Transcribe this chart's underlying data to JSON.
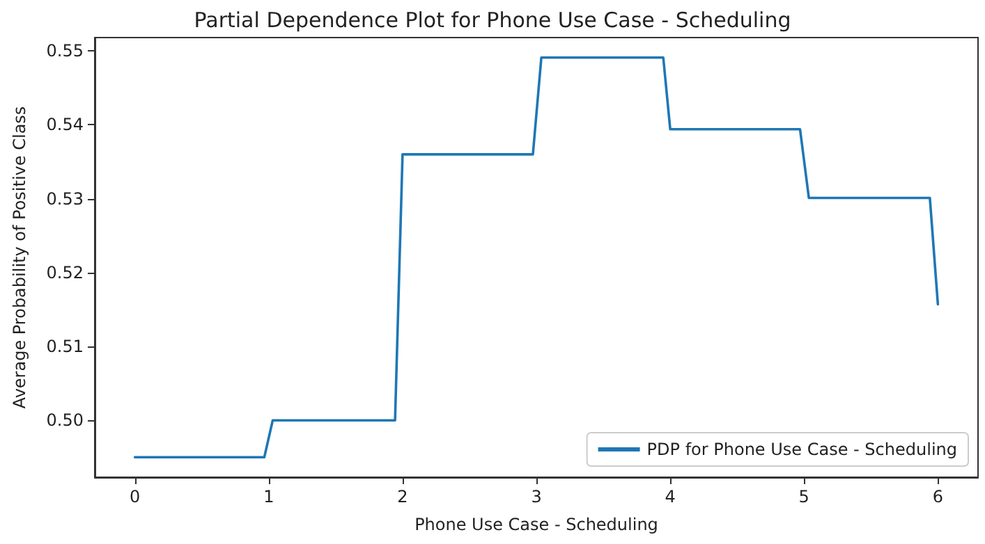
{
  "chart_data": {
    "type": "line",
    "title": "Partial Dependence Plot for Phone Use Case - Scheduling",
    "xlabel": "Phone Use Case - Scheduling",
    "ylabel": "Average Probability of Positive Class",
    "series": [
      {
        "name": "PDP for Phone Use Case - Scheduling",
        "color": "#1f77b4",
        "x": [
          0,
          0.967,
          1.03,
          1.944,
          2.0,
          2.974,
          3.037,
          3.948,
          4.0,
          4.97,
          5.036,
          5.94,
          6.0
        ],
        "values": [
          0.495,
          0.495,
          0.5,
          0.5,
          0.536,
          0.536,
          0.5491,
          0.5491,
          0.5394,
          0.5394,
          0.5301,
          0.5301,
          0.5157
        ]
      }
    ],
    "xlim": [
      -0.3,
      6.3
    ],
    "xticks": [
      0,
      1,
      2,
      3,
      4,
      5,
      6
    ],
    "ylim": [
      0.4923,
      0.5518
    ],
    "yticks": [
      {
        "value": 0.5,
        "label": "0.50"
      },
      0.51,
      0.52,
      0.53,
      0.54,
      0.55
    ],
    "grid": false,
    "legend": "bottom right",
    "marker": "none",
    "line_style": "solid"
  }
}
